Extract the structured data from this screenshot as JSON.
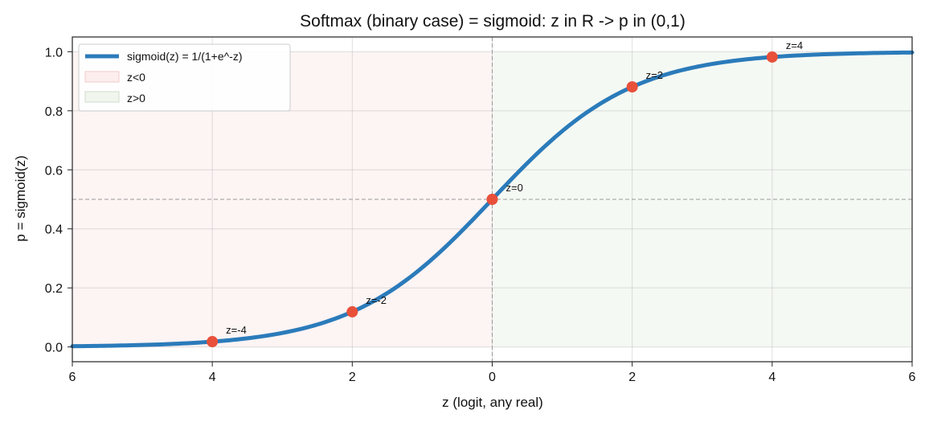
{
  "chart_data": {
    "type": "line",
    "title": "Softmax (binary case) = sigmoid:  z in R  ->  p in (0,1)",
    "xlabel": "z (logit, any real)",
    "ylabel": "p = sigmoid(z)",
    "xlim": [
      -6,
      6
    ],
    "ylim": [
      -0.05,
      1.05
    ],
    "x_ticks": [
      {
        "value": -6,
        "label": "\u00036"
      },
      {
        "value": -4,
        "label": "\u00034"
      },
      {
        "value": -2,
        "label": "\u00032"
      },
      {
        "value": 0,
        "label": "0"
      },
      {
        "value": 2,
        "label": "2"
      },
      {
        "value": 4,
        "label": "4"
      },
      {
        "value": 6,
        "label": "6"
      }
    ],
    "y_ticks": [
      {
        "value": 0.0,
        "label": "0.0"
      },
      {
        "value": 0.2,
        "label": "0.2"
      },
      {
        "value": 0.4,
        "label": "0.4"
      },
      {
        "value": 0.6,
        "label": "0.6"
      },
      {
        "value": 0.8,
        "label": "0.8"
      },
      {
        "value": 1.0,
        "label": "1.0"
      }
    ],
    "grid": true,
    "legend_position": "top-left",
    "series": [
      {
        "name": "sigmoid(z) = 1/(1+e^-z)",
        "color": "#2b7bba",
        "function": "sigmoid",
        "x_range": [
          -6,
          6
        ]
      }
    ],
    "regions": [
      {
        "name": "z<0",
        "x_range": [
          -6,
          0
        ],
        "y_range": [
          0,
          1
        ],
        "color": "#fbe3e3"
      },
      {
        "name": "z>0",
        "x_range": [
          0,
          6
        ],
        "y_range": [
          0,
          1
        ],
        "color": "#e6f0e3"
      }
    ],
    "reference_lines": [
      {
        "orientation": "horizontal",
        "value": 0.5
      },
      {
        "orientation": "vertical",
        "value": 0
      }
    ],
    "points": [
      {
        "x": -4,
        "y": 0.018,
        "label": "z=-4"
      },
      {
        "x": -2,
        "y": 0.119,
        "label": "z=-2"
      },
      {
        "x": 0,
        "y": 0.5,
        "label": "z=0"
      },
      {
        "x": 2,
        "y": 0.881,
        "label": "z=2"
      },
      {
        "x": 4,
        "y": 0.982,
        "label": "z=4"
      }
    ],
    "point_color": "#e8503a"
  }
}
